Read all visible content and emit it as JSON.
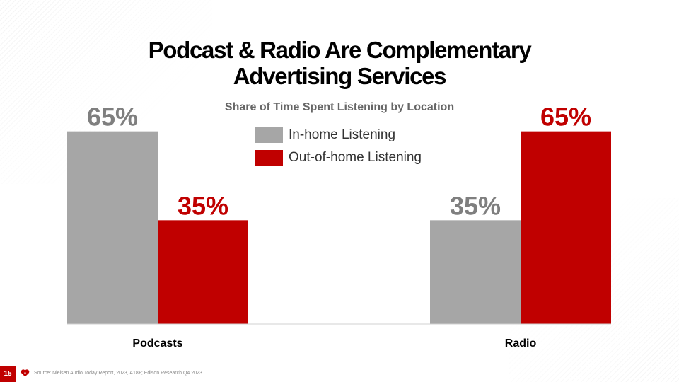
{
  "slide": {
    "title_line1": "Podcast & Radio Are Complementary",
    "title_line2": "Advertising Services",
    "page_number": "15",
    "source": "Source: Nielsen Audio Today Report, 2023, A18+; Edison Research Q4 2023",
    "logo_icon": "iheart-logo-icon"
  },
  "colors": {
    "in_home": "#a6a6a6",
    "out_of_home": "#c00000",
    "label_in_home": "#7f7f7f",
    "label_out_of_home": "#c00000"
  },
  "chart_data": {
    "type": "bar",
    "title": "Share of Time Spent Listening by Location",
    "categories": [
      "Podcasts",
      "Radio"
    ],
    "series": [
      {
        "name": "In-home Listening",
        "values": [
          65,
          35
        ],
        "labels": [
          "65%",
          "35%"
        ]
      },
      {
        "name": "Out-of-home Listening",
        "values": [
          35,
          65
        ],
        "labels": [
          "35%",
          "65%"
        ]
      }
    ],
    "ylim": [
      0,
      100
    ],
    "grid": false,
    "legend": "top-center"
  }
}
